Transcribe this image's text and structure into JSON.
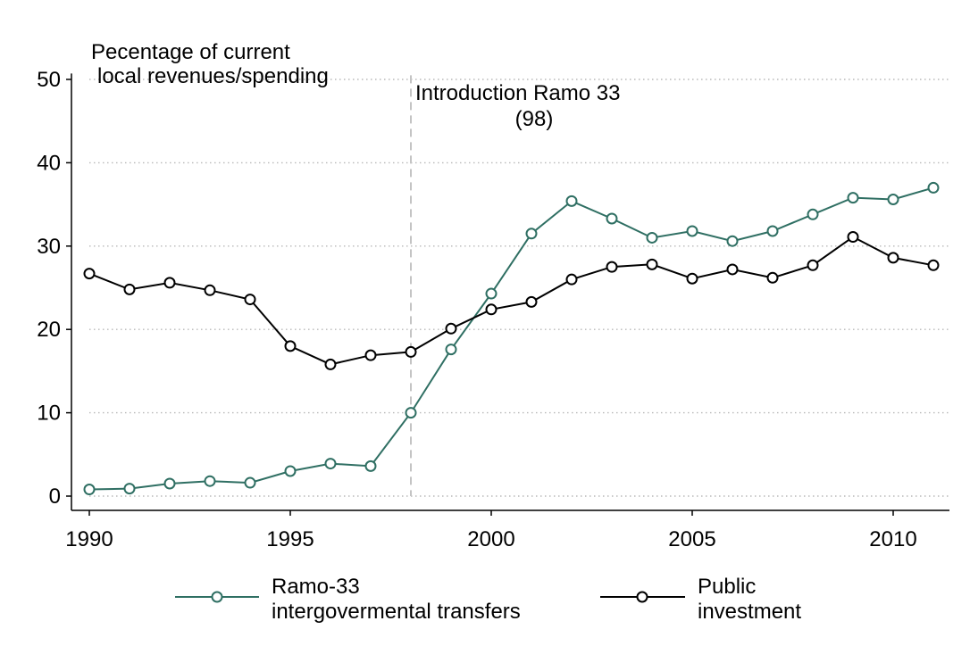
{
  "chart_data": {
    "type": "line",
    "title": "",
    "ylabel_lines": [
      "Pecentage of current",
      "local revenues/spending"
    ],
    "xlabel": "",
    "x": [
      1990,
      1991,
      1992,
      1993,
      1994,
      1995,
      1996,
      1997,
      1998,
      1999,
      2000,
      2001,
      2002,
      2003,
      2004,
      2005,
      2006,
      2007,
      2008,
      2009,
      2010,
      2011
    ],
    "series": [
      {
        "name": "Ramo-33 intergovermental transfers",
        "legend_lines": [
          "Ramo-33",
          "intergovermental transfers"
        ],
        "color": "#2f6f63",
        "values": [
          0.8,
          0.9,
          1.5,
          1.8,
          1.6,
          3.0,
          3.9,
          3.6,
          10.0,
          17.6,
          24.3,
          31.5,
          35.4,
          33.3,
          31.0,
          31.8,
          30.6,
          31.8,
          33.8,
          35.8,
          35.6,
          37.0
        ]
      },
      {
        "name": "Public investment",
        "legend_lines": [
          "Public",
          "investment"
        ],
        "color": "#000000",
        "values": [
          26.7,
          24.8,
          25.6,
          24.7,
          23.6,
          18.0,
          15.8,
          16.9,
          17.3,
          20.1,
          22.4,
          23.3,
          26.0,
          27.5,
          27.8,
          26.1,
          27.2,
          26.2,
          27.7,
          31.1,
          28.6,
          27.7
        ]
      }
    ],
    "xlim": [
      1990,
      2011.4
    ],
    "ylim": [
      -1.5,
      52
    ],
    "xticks": [
      1990,
      1995,
      2000,
      2005,
      2010
    ],
    "yticks": [
      0,
      10,
      20,
      30,
      40,
      50
    ],
    "grid": true,
    "legend_position": "bottom",
    "annotations": [
      {
        "x": 1998,
        "lines": [
          "Introduction Ramo 33",
          "(98)"
        ]
      }
    ]
  }
}
